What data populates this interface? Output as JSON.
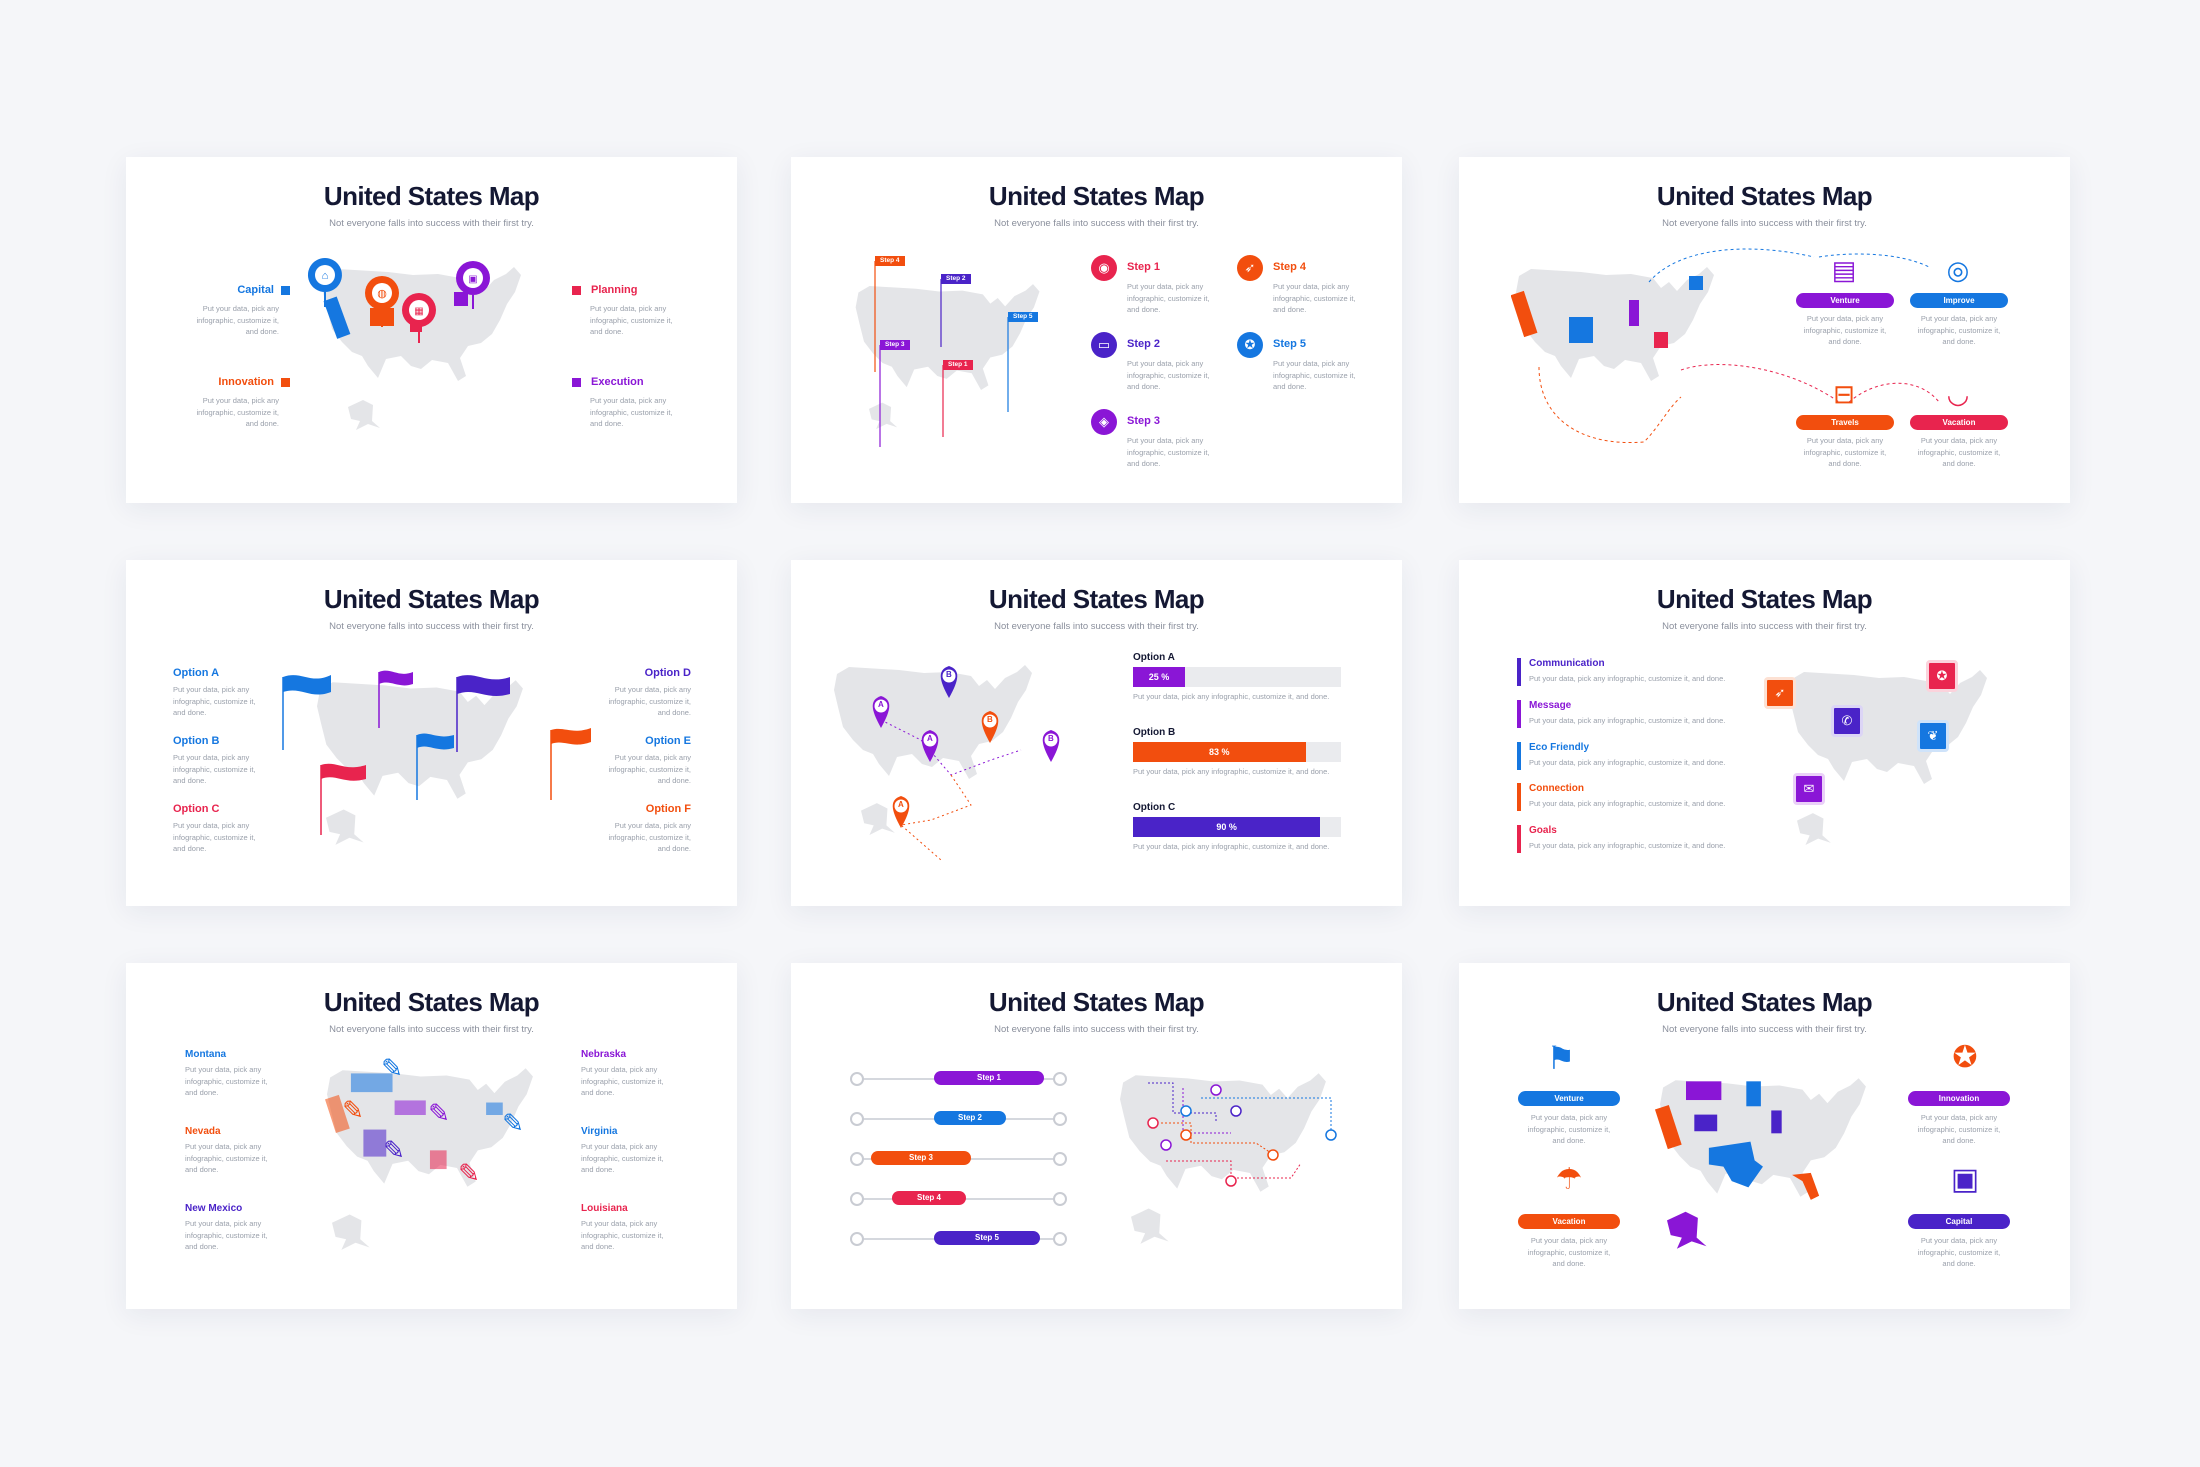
{
  "slide_title": "United States Map",
  "slide_subtitle": "Not everyone falls into success with their first try.",
  "body_text": "Put your data, pick any infographic, customize it, and done.",
  "colors": {
    "blue": "#1577e0",
    "purple": "#8a16d6",
    "red": "#e8244e",
    "orange": "#f24e0e",
    "indigo": "#4a23c8",
    "map_gray": "#e4e5e8"
  },
  "s1": {
    "items": [
      "Capital",
      "Innovation",
      "Planning",
      "Execution"
    ],
    "icons": [
      "bank-icon",
      "globe-icon",
      "calendar-icon",
      "briefcase-icon"
    ]
  },
  "s2": {
    "steps": [
      "Step 1",
      "Step 2",
      "Step 3",
      "Step 4",
      "Step 5"
    ],
    "tags": [
      "Step 4",
      "Step 2",
      "Step 5",
      "Step 3",
      "Step 1"
    ]
  },
  "s3": {
    "items": [
      "Venture",
      "Improve",
      "Travels",
      "Vacation"
    ]
  },
  "s4": {
    "options": [
      "Option A",
      "Option B",
      "Option C",
      "Option D",
      "Option E",
      "Option F"
    ]
  },
  "s5": {
    "pin_letters": [
      "A",
      "B",
      "A",
      "B",
      "B",
      "A"
    ],
    "bars": [
      {
        "label": "Option A",
        "value": 25,
        "text": "25 %"
      },
      {
        "label": "Option B",
        "value": 83,
        "text": "83 %"
      },
      {
        "label": "Option C",
        "value": 90,
        "text": "90 %"
      }
    ]
  },
  "s6": {
    "items": [
      "Communication",
      "Message",
      "Eco Friendly",
      "Connection",
      "Goals"
    ]
  },
  "s7": {
    "states": [
      "Montana",
      "Nevada",
      "New Mexico",
      "Nebraska",
      "Virginia",
      "Louisiana"
    ]
  },
  "s8": {
    "steps": [
      "Step 1",
      "Step 2",
      "Step 3",
      "Step 4",
      "Step 5"
    ]
  },
  "s9": {
    "items": [
      "Venture",
      "Vacation",
      "Innovation",
      "Capital"
    ]
  }
}
